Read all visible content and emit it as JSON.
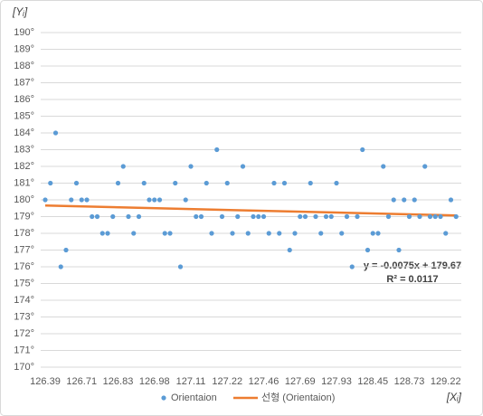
{
  "chart_data": {
    "type": "scatter",
    "y_label": "[Yᵢ]",
    "x_label": "[Xᵢ]",
    "categories": [
      "126.39",
      null,
      null,
      null,
      null,
      null,
      null,
      "126.71",
      null,
      null,
      null,
      null,
      null,
      null,
      "126.83",
      null,
      null,
      null,
      null,
      null,
      null,
      "126.98",
      null,
      null,
      null,
      null,
      null,
      null,
      "127.11",
      null,
      null,
      null,
      null,
      null,
      null,
      "127.22",
      null,
      null,
      null,
      null,
      null,
      null,
      "127.46",
      null,
      null,
      null,
      null,
      null,
      null,
      "127.69",
      null,
      null,
      null,
      null,
      null,
      null,
      "127.93",
      null,
      null,
      null,
      null,
      null,
      null,
      "128.45",
      null,
      null,
      null,
      null,
      null,
      null,
      "128.73",
      null,
      null,
      null,
      null,
      null,
      null,
      "129.22",
      null,
      null
    ],
    "series": [
      {
        "name": "Orientaion",
        "color": "#5b9bd5",
        "values": [
          180,
          181,
          184,
          176,
          177,
          180,
          181,
          180,
          180,
          179,
          179,
          178,
          178,
          179,
          181,
          182,
          179,
          178,
          179,
          181,
          180,
          180,
          180,
          178,
          178,
          181,
          176,
          180,
          182,
          179,
          179,
          181,
          178,
          183,
          179,
          181,
          178,
          179,
          182,
          178,
          179,
          179,
          179,
          178,
          181,
          178,
          181,
          177,
          178,
          179,
          179,
          181,
          179,
          178,
          179,
          179,
          181,
          178,
          179,
          176,
          179,
          183,
          177,
          178,
          178,
          182,
          179,
          180,
          177,
          180,
          179,
          180,
          179,
          182,
          179,
          179,
          179,
          178,
          180,
          179
        ]
      }
    ],
    "trendline": {
      "name": "선형 (Orientaion)",
      "color": "#ed7d31",
      "values": [
        179.66,
        179.07
      ]
    },
    "annotations": [
      "y = -0.0075x + 179.67",
      "R² = 0.0117"
    ],
    "ylim": [
      170,
      190
    ],
    "yticks": [
      {
        "value": 170,
        "label": "170°"
      },
      {
        "value": 171,
        "label": "171°"
      },
      {
        "value": 172,
        "label": "172°"
      },
      {
        "value": 173,
        "label": "173°"
      },
      {
        "value": 174,
        "label": "174°"
      },
      {
        "value": 175,
        "label": "175°"
      },
      {
        "value": 176,
        "label": "176°"
      },
      {
        "value": 177,
        "label": "177°"
      },
      {
        "value": 178,
        "label": "178°"
      },
      {
        "value": 179,
        "label": "179°"
      },
      {
        "value": 180,
        "label": "180°"
      },
      {
        "value": 181,
        "label": "181°"
      },
      {
        "value": 182,
        "label": "182°"
      },
      {
        "value": 183,
        "label": "183°"
      },
      {
        "value": 184,
        "label": "184°"
      },
      {
        "value": 185,
        "label": "185°"
      },
      {
        "value": 186,
        "label": "186°"
      },
      {
        "value": 187,
        "label": "187°"
      },
      {
        "value": 188,
        "label": "188°"
      },
      {
        "value": 189,
        "label": "189°"
      },
      {
        "value": 190,
        "label": "190°"
      }
    ],
    "grid": true
  }
}
